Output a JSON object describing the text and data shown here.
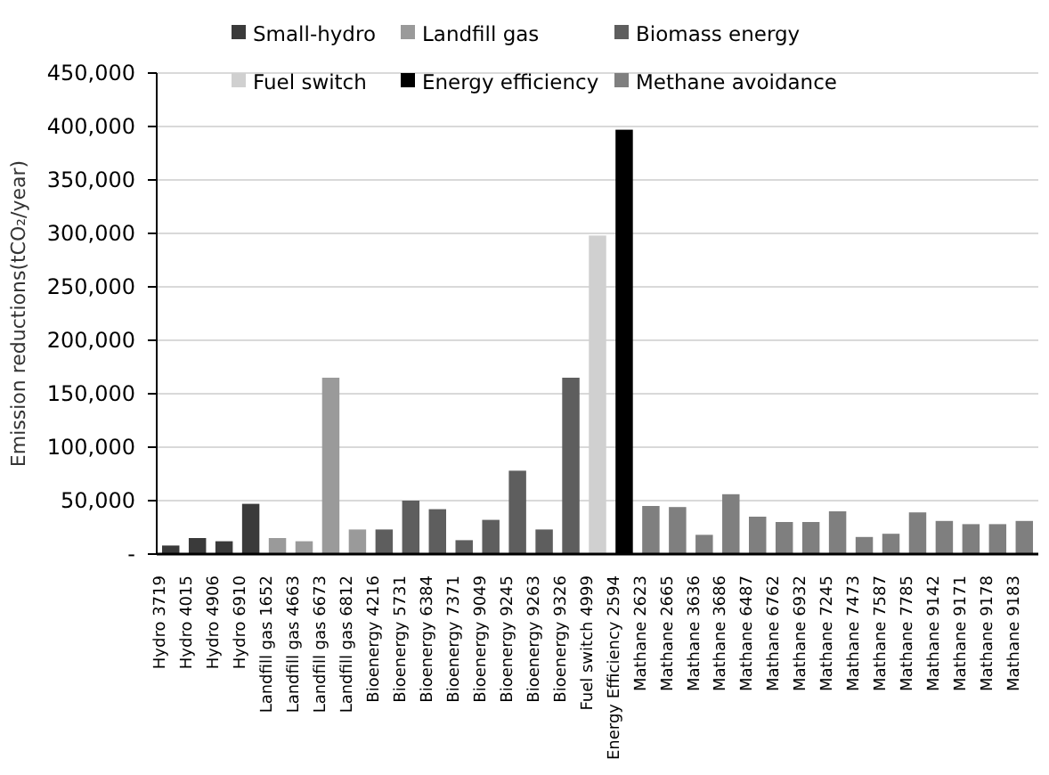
{
  "chart_data": {
    "type": "bar",
    "ylabel": "Emission reductions(tCO₂/year)",
    "categories": [
      "Hydro 3719",
      "Hydro 4015",
      "Hydro 4906",
      "Hydro 6910",
      "Landfill gas 1652",
      "Landfill gas 4663",
      "Landfill gas 6673",
      "Landfill gas 6812",
      "Bioenergy 4216",
      "Bioenergy 5731",
      "Bioenergy 6384",
      "Bioenergy 7371",
      "Bioenergy 9049",
      "Bioenergy 9245",
      "Bioenergy 9263",
      "Bioenergy 9326",
      "Fuel switch 4999",
      "Energy Efficiency 2594",
      "Mathane 2623",
      "Mathane 2665",
      "Mathane 3636",
      "Mathane 3686",
      "Mathane 6487",
      "Mathane 6762",
      "Mathane 6932",
      "Mathane 7245",
      "Mathane 7473",
      "Mathane 7587",
      "Mathane 7785",
      "Mathane 9142",
      "Mathane 9171",
      "Mathane 9178",
      "Mathane 9183"
    ],
    "series": [
      {
        "name": "Small-hydro",
        "color": "#3a3a3a",
        "values": [
          8000,
          15000,
          12000,
          47000,
          null,
          null,
          null,
          null,
          null,
          null,
          null,
          null,
          null,
          null,
          null,
          null,
          null,
          null,
          null,
          null,
          null,
          null,
          null,
          null,
          null,
          null,
          null,
          null,
          null,
          null,
          null,
          null,
          null
        ]
      },
      {
        "name": "Landfill gas",
        "color": "#9a9a9a",
        "values": [
          null,
          null,
          null,
          null,
          15000,
          12000,
          165000,
          23000,
          null,
          null,
          null,
          null,
          null,
          null,
          null,
          null,
          null,
          null,
          null,
          null,
          null,
          null,
          null,
          null,
          null,
          null,
          null,
          null,
          null,
          null,
          null,
          null,
          null
        ]
      },
      {
        "name": "Biomass energy",
        "color": "#5e5e5e",
        "values": [
          null,
          null,
          null,
          null,
          null,
          null,
          null,
          null,
          23000,
          50000,
          42000,
          13000,
          32000,
          78000,
          23000,
          165000,
          null,
          null,
          null,
          null,
          null,
          null,
          null,
          null,
          null,
          null,
          null,
          null,
          null,
          null,
          null,
          null,
          null
        ]
      },
      {
        "name": "Fuel switch",
        "color": "#d0d0d0",
        "values": [
          null,
          null,
          null,
          null,
          null,
          null,
          null,
          null,
          null,
          null,
          null,
          null,
          null,
          null,
          null,
          null,
          298000,
          null,
          null,
          null,
          null,
          null,
          null,
          null,
          null,
          null,
          null,
          null,
          null,
          null,
          null,
          null,
          null
        ]
      },
      {
        "name": "Energy efficiency",
        "color": "#000000",
        "values": [
          null,
          null,
          null,
          null,
          null,
          null,
          null,
          null,
          null,
          null,
          null,
          null,
          null,
          null,
          null,
          null,
          null,
          397000,
          null,
          null,
          null,
          null,
          null,
          null,
          null,
          null,
          null,
          null,
          null,
          null,
          null,
          null,
          null
        ]
      },
      {
        "name": "Methane avoidance",
        "color": "#7f7f7f",
        "values": [
          null,
          null,
          null,
          null,
          null,
          null,
          null,
          null,
          null,
          null,
          null,
          null,
          null,
          null,
          null,
          null,
          null,
          null,
          45000,
          44000,
          18000,
          56000,
          35000,
          30000,
          30000,
          40000,
          16000,
          19000,
          39000,
          31000,
          28000,
          28000,
          31000
        ]
      }
    ],
    "ylim": [
      0,
      450000
    ],
    "yticks": [
      {
        "value": 0,
        "label": "-"
      },
      {
        "value": 50000,
        "label": "50,000"
      },
      {
        "value": 100000,
        "label": "100,000"
      },
      {
        "value": 150000,
        "label": "150,000"
      },
      {
        "value": 200000,
        "label": "200,000"
      },
      {
        "value": 250000,
        "label": "250,000"
      },
      {
        "value": 300000,
        "label": "300,000"
      },
      {
        "value": 350000,
        "label": "350,000"
      },
      {
        "value": 400000,
        "label": "400,000"
      },
      {
        "value": 450000,
        "label": "450,000"
      }
    ],
    "grid": "y",
    "legend": "top"
  }
}
